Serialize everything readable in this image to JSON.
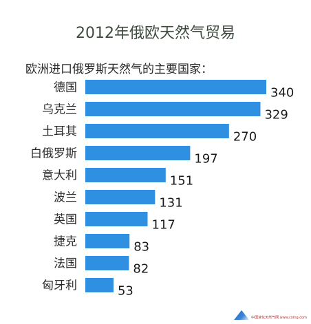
{
  "chart_data": {
    "type": "bar",
    "orientation": "horizontal",
    "title": "2012年俄欧天然气贸易",
    "subtitle": "欧洲进口俄罗斯天然气的主要国家：",
    "categories": [
      "德国",
      "乌克兰",
      "土耳其",
      "白俄罗斯",
      "意大利",
      "波兰",
      "英国",
      "捷克",
      "法国",
      "匈牙利"
    ],
    "values": [
      340,
      329,
      270,
      197,
      151,
      131,
      117,
      83,
      82,
      53
    ],
    "bar_color": "#2f8fe0",
    "grid": false,
    "xlim": [
      0,
      340
    ]
  },
  "watermark": {
    "logo": "triangle-logo",
    "text": "中国液化天然气网 www.cnlng.com"
  }
}
